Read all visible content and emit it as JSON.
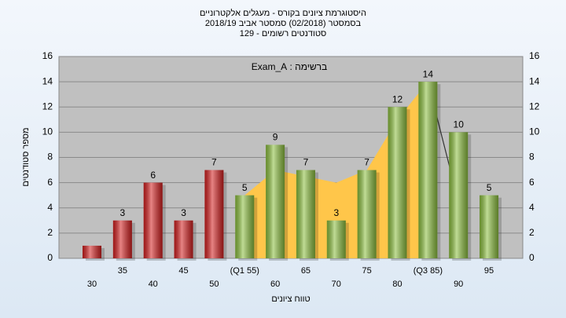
{
  "chart_data": {
    "type": "bar",
    "title": "היסטוגרמת ציונים בקורס - מעגלים אלקטרוניים",
    "subtitle": "בסמסטר (02/2018) סמסטר אביב 2018/19",
    "subtitle2": "סטודנטים רשומים - 129",
    "annotation": "ברשימה : Exam_A",
    "x_label": "טווח ציונים",
    "y_label": "מספר סטודנטים",
    "categories": [
      "30",
      "35",
      "40",
      "45",
      "50",
      "(Q1 55)",
      "60",
      "65",
      "70",
      "75",
      "80",
      "(Q3 85)",
      "90",
      "95"
    ],
    "values": [
      1,
      3,
      6,
      3,
      7,
      5,
      9,
      7,
      3,
      7,
      12,
      14,
      10,
      5
    ],
    "value_labels": [
      null,
      "3",
      "6",
      "3",
      "7",
      "5",
      "9",
      "7",
      "3",
      "7",
      "12",
      "14",
      "10",
      "5"
    ],
    "colors": [
      "#d42020",
      "#d42020",
      "#d42020",
      "#d42020",
      "#d42020",
      "#8cbf3f",
      "#8cbf3f",
      "#8cbf3f",
      "#8cbf3f",
      "#8cbf3f",
      "#8cbf3f",
      "#8cbf3f",
      "#8cbf3f",
      "#8cbf3f"
    ],
    "area": {
      "color": "#ffc64a",
      "values": [
        null,
        null,
        null,
        null,
        null,
        5,
        7,
        6.5,
        6,
        7,
        11,
        14,
        null,
        null
      ]
    },
    "line": {
      "color": "#333333",
      "values": [
        null,
        null,
        null,
        null,
        null,
        null,
        null,
        null,
        null,
        null,
        null,
        14,
        4.5,
        null
      ]
    },
    "ylim": [
      0,
      16
    ],
    "yticks": [
      0,
      2,
      4,
      6,
      8,
      10,
      12,
      14,
      16
    ],
    "grid": true
  }
}
